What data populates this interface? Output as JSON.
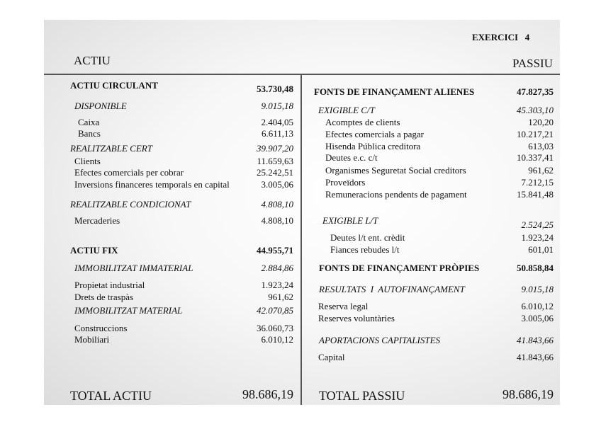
{
  "header": {
    "exercici": "EXERCICI   4",
    "actiu": "ACTIU",
    "passiu": "PASSIU"
  },
  "actiu": [
    {
      "label": "ACTIU CIRCULANT",
      "value": "53.730,48"
    },
    {
      "label": "DISPONIBLE",
      "value": "9.015,18"
    },
    {
      "label": "Caixa",
      "value": "2.404,05"
    },
    {
      "label": "Bancs",
      "value": "6.611,13"
    },
    {
      "label": "REALITZABLE CERT",
      "value": "39.907,20"
    },
    {
      "label": "Clients",
      "value": "11.659,63"
    },
    {
      "label": "Efectes comercials per cobrar",
      "value": "25.242,51"
    },
    {
      "label": "Inversions financeres temporals en capital",
      "value": "3.005,06"
    },
    {
      "label": "REALITZABLE CONDICIONAT",
      "value": "4.808,10"
    },
    {
      "label": "Mercaderies",
      "value": "4.808,10"
    },
    {
      "label": "ACTIU FIX",
      "value": "44.955,71"
    },
    {
      "label": "IMMOBILITZAT IMMATERIAL",
      "value": "2.884,86"
    },
    {
      "label": "Propietat industrial",
      "value": "1.923,24"
    },
    {
      "label": "Drets de traspàs",
      "value": "961,62"
    },
    {
      "label": "IMMOBILITZAT MATERIAL",
      "value": "42.070,85"
    },
    {
      "label": "Construccions",
      "value": "36.060,73"
    },
    {
      "label": "Mobiliari",
      "value": "6.010,12"
    }
  ],
  "total_actiu": {
    "label": "TOTAL ACTIU",
    "value": "98.686,19"
  },
  "passiu": [
    {
      "label": "FONTS DE FINANÇAMENT ALIENES",
      "value": "47.827,35"
    },
    {
      "label": "EXIGIBLE C/T",
      "value": "45.303,10"
    },
    {
      "label": "Acomptes de clients",
      "value": "120,20"
    },
    {
      "label": "Efectes comercials a pagar",
      "value": "10.217,21"
    },
    {
      "label": "Hisenda Pública creditora",
      "value": "613,03"
    },
    {
      "label": "Deutes e.c. c/t",
      "value": "10.337,41"
    },
    {
      "label": "Organismes Seguretat Social creditors",
      "value": "961,62"
    },
    {
      "label": "Proveïdors",
      "value": "7.212,15"
    },
    {
      "label": "Remuneracions pendents de pagament",
      "value": "15.841,48"
    },
    {
      "label": "EXIGIBLE L/T",
      "value": "2.524,25"
    },
    {
      "label": "Deutes l/t ent. crèdit",
      "value": "1.923,24"
    },
    {
      "label": "Fiances rebudes l/t",
      "value": "601,01"
    },
    {
      "label": "FONTS DE FINANÇAMENT PRÒPIES",
      "value": "50.858,84"
    },
    {
      "label": "RESULTATS  I  AUTOFINANÇAMENT",
      "value": "9.015,18"
    },
    {
      "label": "Reserva legal",
      "value": "6.010,12"
    },
    {
      "label": "Reserves voluntàries",
      "value": "3.005,06"
    },
    {
      "label": "APORTACIONS CAPITALISTES",
      "value": "41.843,66"
    },
    {
      "label": "Capital",
      "value": "41.843,66"
    }
  ],
  "total_passiu": {
    "label": "TOTAL PASSIU",
    "value": "98.686,19"
  }
}
